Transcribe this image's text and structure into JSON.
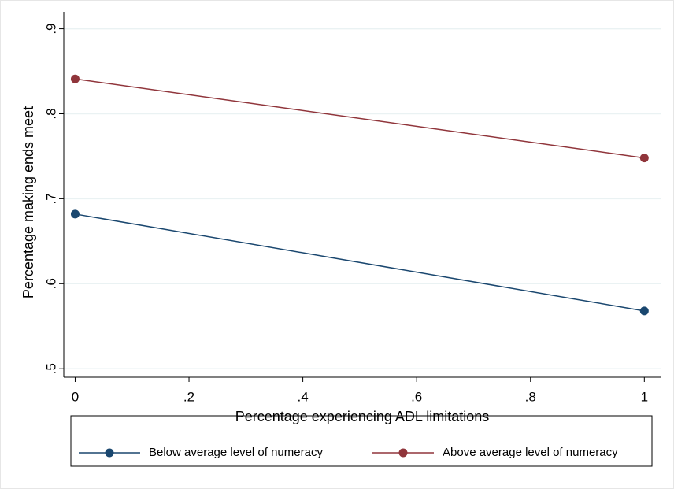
{
  "chart_data": {
    "type": "line",
    "x_label": "Percentage experiencing ADL limitations",
    "y_label": "Percentage making ends meet",
    "x": [
      0,
      1
    ],
    "series": [
      {
        "name": "Below average level of numeracy",
        "color": "#1a476f",
        "values": [
          0.682,
          0.568
        ]
      },
      {
        "name": "Above average level of numeracy",
        "color": "#90353b",
        "values": [
          0.841,
          0.748
        ]
      }
    ],
    "xlim": [
      -0.02,
      1.03
    ],
    "ylim": [
      0.49,
      0.92
    ],
    "xticks": [
      0,
      {
        "value": 0.2,
        "label": ".2"
      },
      {
        "value": 0.4,
        "label": ".4"
      },
      {
        "value": 0.6,
        "label": ".6"
      },
      {
        "value": 0.8,
        "label": ".8"
      },
      1
    ],
    "yticks": [
      {
        "value": 0.5,
        "label": ".5"
      },
      {
        "value": 0.6,
        "label": ".6"
      },
      {
        "value": 0.7,
        "label": ".7"
      },
      {
        "value": 0.8,
        "label": ".8"
      },
      {
        "value": 0.9,
        "label": ".9"
      }
    ],
    "grid": true
  }
}
